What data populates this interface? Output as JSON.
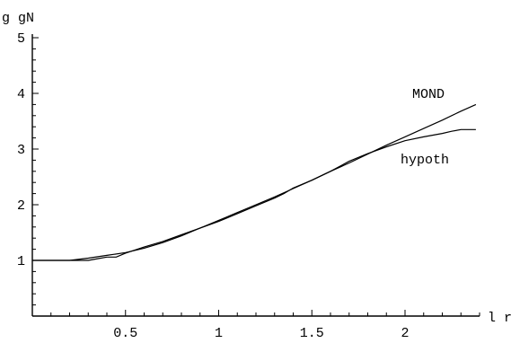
{
  "chart_data": {
    "type": "line",
    "title": "",
    "xlabel": "l r",
    "ylabel": "g gN",
    "xlim": [
      0.0,
      2.4
    ],
    "ylim": [
      0.0,
      5.0
    ],
    "x_ticks": [
      {
        "value": 0.5,
        "label": "0.5"
      },
      {
        "value": 1.0,
        "label": "1"
      },
      {
        "value": 1.5,
        "label": "1.5"
      },
      {
        "value": 2.0,
        "label": "2"
      }
    ],
    "y_ticks": [
      {
        "value": 1,
        "label": "1"
      },
      {
        "value": 2,
        "label": "2"
      },
      {
        "value": 3,
        "label": "3"
      },
      {
        "value": 4,
        "label": "4"
      },
      {
        "value": 5,
        "label": "5"
      }
    ],
    "grid": false,
    "series": [
      {
        "name": "MOND",
        "x": [
          0.0,
          0.2,
          0.3,
          0.4,
          0.5,
          0.6,
          0.7,
          0.8,
          0.9,
          1.0,
          1.1,
          1.2,
          1.3,
          1.4,
          1.5,
          1.6,
          1.7,
          1.8,
          1.9,
          2.0,
          2.1,
          2.2,
          2.3,
          2.38
        ],
        "y": [
          1.0,
          1.0,
          1.04,
          1.09,
          1.14,
          1.22,
          1.32,
          1.44,
          1.58,
          1.72,
          1.86,
          2.0,
          2.14,
          2.29,
          2.44,
          2.6,
          2.75,
          2.91,
          3.07,
          3.22,
          3.37,
          3.52,
          3.68,
          3.8
        ]
      },
      {
        "name": "hypoth",
        "x": [
          0.0,
          0.2,
          0.25,
          0.3,
          0.35,
          0.4,
          0.45,
          0.5,
          0.6,
          0.7,
          0.8,
          0.9,
          1.0,
          1.1,
          1.2,
          1.3,
          1.35,
          1.4,
          1.5,
          1.6,
          1.7,
          1.8,
          1.9,
          2.0,
          2.1,
          2.2,
          2.25,
          2.3,
          2.38
        ],
        "y": [
          1.0,
          1.0,
          1.0,
          1.0,
          1.03,
          1.06,
          1.06,
          1.13,
          1.24,
          1.34,
          1.46,
          1.58,
          1.7,
          1.84,
          1.98,
          2.12,
          2.2,
          2.3,
          2.44,
          2.6,
          2.78,
          2.92,
          3.04,
          3.15,
          3.22,
          3.28,
          3.32,
          3.35,
          3.35
        ]
      }
    ]
  }
}
